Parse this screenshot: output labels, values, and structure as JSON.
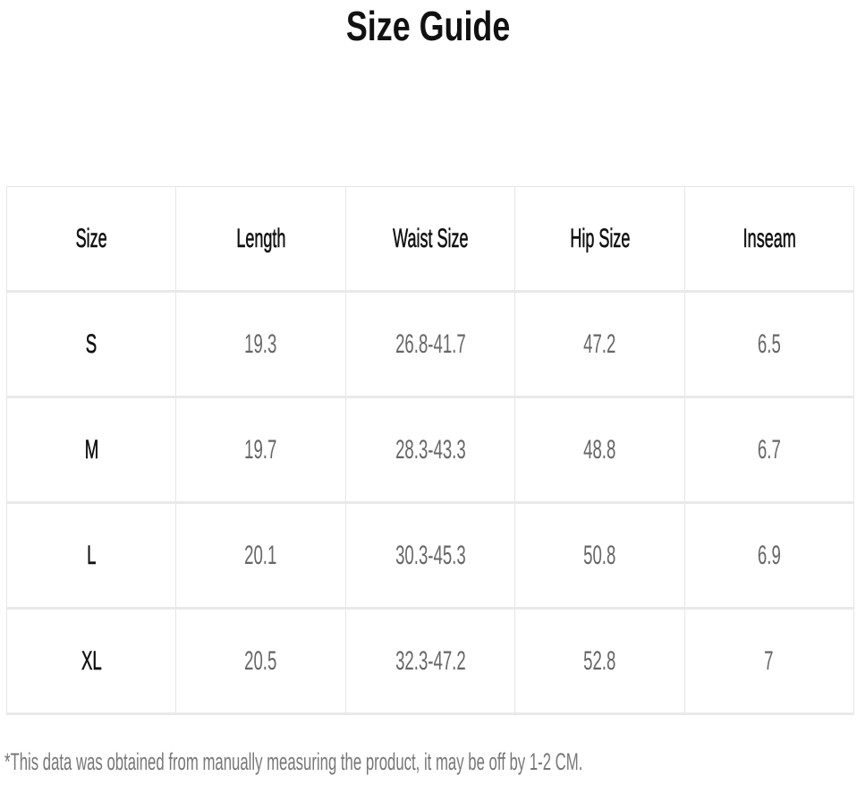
{
  "title": "Size Guide",
  "table": {
    "headers": [
      "Size",
      "Length",
      "Waist Size",
      "Hip Size",
      "Inseam"
    ],
    "rows": [
      [
        "S",
        "19.3",
        "26.8-41.7",
        "47.2",
        "6.5"
      ],
      [
        "M",
        "19.7",
        "28.3-43.3",
        "48.8",
        "6.7"
      ],
      [
        "L",
        "20.1",
        "30.3-45.3",
        "50.8",
        "6.9"
      ],
      [
        "XL",
        "20.5",
        "32.3-47.2",
        "52.8",
        "7"
      ]
    ]
  },
  "footnote": "*This data was obtained from manually measuring the product, it may be off by 1-2 CM."
}
